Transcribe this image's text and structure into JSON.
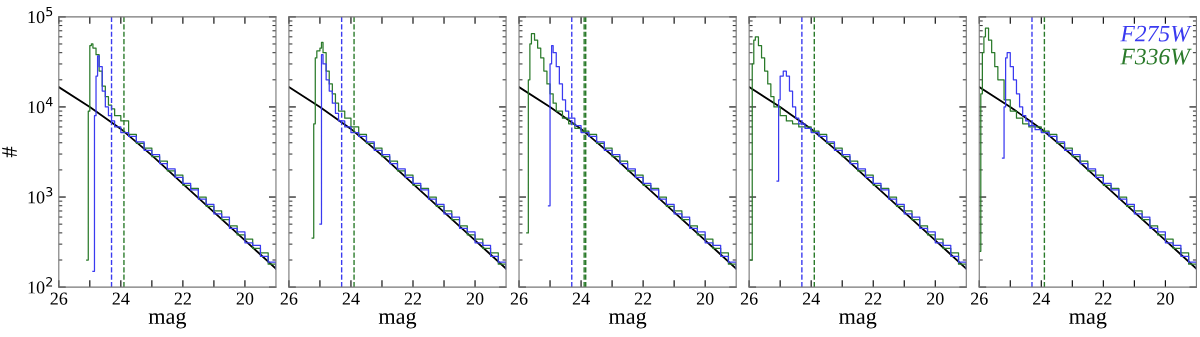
{
  "chart_data": [
    {
      "type": "line",
      "xlabel": "mag",
      "ylabel": "#",
      "log": "y",
      "xlim": [
        26,
        19
      ],
      "ylim": [
        100,
        100000
      ],
      "xticks": [
        26,
        {
          "value": 25,
          "label": null
        },
        24,
        {
          "value": 23,
          "label": null
        },
        22,
        {
          "value": 21,
          "label": null
        },
        20
      ],
      "yticks": [
        {
          "value": 100,
          "label": "10$^{2}$"
        },
        {
          "value": 1000,
          "label": "10$^{3}$"
        },
        {
          "value": 10000,
          "label": "10$^{4}$"
        },
        {
          "value": 100000,
          "label": "10$^{5}$"
        }
      ],
      "grid": false,
      "legend": false,
      "series": [
        {
          "type": "line",
          "color": "#000000",
          "x": [
            26,
            25,
            24,
            23,
            22,
            21,
            20,
            19.5,
            19
          ],
          "values": [
            16600,
            10000,
            5700,
            2900,
            1400,
            680,
            330,
            230,
            160
          ]
        },
        {
          "type": "step",
          "color": "#2a7a2a",
          "x": [
            25.1,
            25.05,
            25.0,
            24.95,
            24.9,
            24.8,
            24.7,
            24.6,
            24.5,
            24.4,
            24.3,
            24.2,
            24.0,
            23.75,
            23.5,
            23.25,
            23,
            22.75,
            22.5,
            22.25,
            22,
            21.75,
            21.5,
            21.25,
            21,
            20.75,
            20.5,
            20.25,
            20,
            19.75,
            19.5,
            19.25,
            19.0
          ],
          "values": [
            200,
            9000,
            48000,
            50000,
            45000,
            38000,
            25000,
            17000,
            13000,
            10500,
            9500,
            8000,
            7000,
            4950,
            3950,
            3500,
            2800,
            2500,
            1950,
            1750,
            1350,
            1250,
            1000,
            790,
            700,
            560,
            480,
            380,
            340,
            270,
            240,
            180,
            165
          ]
        },
        {
          "type": "step",
          "color": "#3a3af0",
          "x": [
            24.9,
            24.85,
            24.8,
            24.75,
            24.7,
            24.6,
            24.5,
            24.4,
            24.3,
            24.2,
            24.0,
            23.75,
            23.5,
            23.25,
            23,
            22.75,
            22.5,
            22.25,
            22,
            21.75,
            21.5,
            21.25,
            21,
            20.75,
            20.5,
            20.25,
            20,
            19.75,
            19.5,
            19.25,
            19.0
          ],
          "values": [
            150,
            8000,
            22000,
            37000,
            28000,
            15000,
            10000,
            8000,
            7000,
            6000,
            5200,
            4700,
            4100,
            3300,
            2950,
            2350,
            2050,
            1650,
            1420,
            1200,
            950,
            830,
            650,
            600,
            450,
            410,
            310,
            290,
            220,
            190,
            160
          ]
        }
      ],
      "ref_lines": [
        {
          "axis": "x",
          "value": 24.3,
          "color": "#3a3af0",
          "line_style": "dashed"
        },
        {
          "axis": "x",
          "value": 23.9,
          "color": "#2a7a2a",
          "line_style": "dashed"
        }
      ]
    },
    {
      "type": "line",
      "xlabel": "mag",
      "log": "y",
      "tick_labels": "x",
      "xlim": [
        26,
        19
      ],
      "ylim": [
        100,
        100000
      ],
      "xticks": [
        26,
        {
          "value": 25,
          "label": null
        },
        24,
        {
          "value": 23,
          "label": null
        },
        22,
        {
          "value": 21,
          "label": null
        },
        20
      ],
      "yticks": [
        {
          "value": 100,
          "label": null
        },
        {
          "value": 1000,
          "label": null
        },
        {
          "value": 10000,
          "label": null
        },
        {
          "value": 100000,
          "label": null
        }
      ],
      "grid": false,
      "legend": false,
      "series": [
        {
          "type": "line",
          "color": "#000000",
          "x": [
            26,
            25,
            24,
            23,
            22,
            21,
            20,
            19.5,
            19
          ],
          "values": [
            16600,
            10000,
            5700,
            2900,
            1400,
            680,
            330,
            230,
            160
          ]
        },
        {
          "type": "step",
          "color": "#2a7a2a",
          "x": [
            25.25,
            25.2,
            25.15,
            25.1,
            25.0,
            24.95,
            24.9,
            24.8,
            24.7,
            24.6,
            24.5,
            24.4,
            24.2,
            24.0,
            23.75,
            23.5,
            23.25,
            23,
            22.75,
            22.5,
            22.25,
            22,
            21.75,
            21.5,
            21.25,
            21,
            20.75,
            20.5,
            20.25,
            20,
            19.75,
            19.5,
            19.25,
            19.0
          ],
          "values": [
            350,
            6500,
            35000,
            42000,
            45000,
            52000,
            40000,
            25000,
            18000,
            14000,
            11000,
            9000,
            7500,
            6000,
            4950,
            3950,
            3500,
            2800,
            2500,
            1950,
            1750,
            1350,
            1250,
            1000,
            790,
            700,
            560,
            480,
            380,
            340,
            270,
            240,
            180,
            165
          ]
        },
        {
          "type": "step",
          "color": "#3a3af0",
          "x": [
            25.0,
            24.95,
            24.9,
            24.8,
            24.7,
            24.6,
            24.5,
            24.4,
            24.2,
            24.0,
            23.75,
            23.5,
            23.25,
            23,
            22.75,
            22.5,
            22.25,
            22,
            21.75,
            21.5,
            21.25,
            21,
            20.75,
            20.5,
            20.25,
            20,
            19.75,
            19.5,
            19.25,
            19.0
          ],
          "values": [
            500,
            38000,
            30000,
            20000,
            15000,
            11000,
            8500,
            7000,
            6000,
            5200,
            4700,
            4100,
            3300,
            2950,
            2350,
            2050,
            1650,
            1420,
            1200,
            950,
            830,
            650,
            600,
            450,
            410,
            310,
            290,
            220,
            190,
            160
          ]
        }
      ],
      "ref_lines": [
        {
          "axis": "x",
          "value": 24.3,
          "color": "#3a3af0",
          "line_style": "dashed"
        },
        {
          "axis": "x",
          "value": 23.9,
          "color": "#2a7a2a",
          "line_style": "dashed"
        }
      ]
    },
    {
      "type": "line",
      "xlabel": "mag",
      "log": "y",
      "tick_labels": "x",
      "xlim": [
        26,
        19
      ],
      "ylim": [
        100,
        100000
      ],
      "xticks": [
        26,
        {
          "value": 25,
          "label": null
        },
        24,
        {
          "value": 23,
          "label": null
        },
        22,
        {
          "value": 21,
          "label": null
        },
        20
      ],
      "yticks": [
        {
          "value": 100,
          "label": null
        },
        {
          "value": 1000,
          "label": null
        },
        {
          "value": 10000,
          "label": null
        },
        {
          "value": 100000,
          "label": null
        }
      ],
      "grid": false,
      "legend": false,
      "series": [
        {
          "type": "line",
          "color": "#000000",
          "x": [
            26,
            25,
            24,
            23,
            22,
            21,
            20,
            19.5,
            19
          ],
          "values": [
            16600,
            10000,
            5700,
            2900,
            1400,
            680,
            330,
            230,
            160
          ]
        },
        {
          "type": "step",
          "color": "#2a7a2a",
          "x": [
            25.75,
            25.7,
            25.65,
            25.6,
            25.5,
            25.4,
            25.3,
            25.2,
            25.1,
            25.0,
            24.9,
            24.8,
            24.6,
            24.4,
            24.2,
            24.0,
            23.75,
            23.5,
            23.25,
            23,
            22.75,
            22.5,
            22.25,
            22,
            21.75,
            21.5,
            21.25,
            21,
            20.75,
            20.5,
            20.25,
            20,
            19.75,
            19.5,
            19.25,
            19.0
          ],
          "values": [
            400,
            20000,
            50000,
            65000,
            55000,
            45000,
            35000,
            25000,
            18000,
            14000,
            11000,
            9000,
            7500,
            6500,
            5800,
            5400,
            4950,
            3950,
            3500,
            2800,
            2500,
            1950,
            1750,
            1350,
            1250,
            1000,
            790,
            700,
            560,
            480,
            380,
            340,
            270,
            240,
            180,
            165
          ]
        },
        {
          "type": "step",
          "color": "#3a3af0",
          "x": [
            25.05,
            25.0,
            24.95,
            24.9,
            24.8,
            24.7,
            24.6,
            24.5,
            24.4,
            24.2,
            24.0,
            23.75,
            23.5,
            23.25,
            23,
            22.75,
            22.5,
            22.25,
            22,
            21.75,
            21.5,
            21.25,
            21,
            20.75,
            20.5,
            20.25,
            20,
            19.75,
            19.5,
            19.25,
            19.0
          ],
          "values": [
            800,
            30000,
            48000,
            40000,
            28000,
            18000,
            12000,
            9000,
            7500,
            6200,
            5200,
            4700,
            4100,
            3300,
            2950,
            2350,
            2050,
            1650,
            1420,
            1200,
            950,
            830,
            650,
            600,
            450,
            410,
            310,
            290,
            220,
            190,
            160
          ]
        }
      ],
      "ref_lines": [
        {
          "axis": "x",
          "value": 24.3,
          "color": "#3a3af0",
          "line_style": "dashed"
        },
        {
          "axis": "x",
          "value": 23.9,
          "color": "#2a7a2a",
          "line_style": "dashed"
        },
        {
          "axis": "x",
          "value": 23.85,
          "color": "#2a7a2a",
          "line_style": "dashed"
        }
      ]
    },
    {
      "type": "line",
      "xlabel": "mag",
      "log": "y",
      "tick_labels": "x",
      "xlim": [
        26,
        19
      ],
      "ylim": [
        100,
        100000
      ],
      "xticks": [
        26,
        {
          "value": 25,
          "label": null
        },
        24,
        {
          "value": 23,
          "label": null
        },
        22,
        {
          "value": 21,
          "label": null
        },
        20
      ],
      "yticks": [
        {
          "value": 100,
          "label": null
        },
        {
          "value": 1000,
          "label": null
        },
        {
          "value": 10000,
          "label": null
        },
        {
          "value": 100000,
          "label": null
        }
      ],
      "grid": false,
      "legend": false,
      "series": [
        {
          "type": "line",
          "color": "#000000",
          "x": [
            26,
            25,
            24,
            23,
            22,
            21,
            20,
            19.5,
            19
          ],
          "values": [
            16600,
            10000,
            5700,
            2900,
            1400,
            680,
            330,
            230,
            160
          ]
        },
        {
          "type": "step",
          "color": "#2a7a2a",
          "x": [
            25.95,
            25.9,
            25.85,
            25.8,
            25.7,
            25.6,
            25.5,
            25.4,
            25.3,
            25.2,
            25.0,
            24.8,
            24.6,
            24.4,
            24.0,
            23.75,
            23.5,
            23.25,
            23,
            22.75,
            22.5,
            22.25,
            22,
            21.75,
            21.5,
            21.25,
            21,
            20.75,
            20.5,
            20.25,
            20,
            19.75,
            19.5,
            19.25,
            19.0
          ],
          "values": [
            200,
            30000,
            55000,
            60000,
            48000,
            35000,
            25000,
            18000,
            13000,
            10000,
            8000,
            7000,
            6500,
            6000,
            5400,
            4950,
            3950,
            3500,
            2800,
            2500,
            1950,
            1750,
            1350,
            1250,
            1000,
            790,
            700,
            560,
            480,
            380,
            340,
            270,
            240,
            180,
            165
          ]
        },
        {
          "type": "step",
          "color": "#3a3af0",
          "x": [
            25.1,
            25.05,
            25.0,
            24.9,
            24.8,
            24.7,
            24.6,
            24.5,
            24.4,
            24.2,
            24.0,
            23.75,
            23.5,
            23.25,
            23,
            22.75,
            22.5,
            22.25,
            22,
            21.75,
            21.5,
            21.25,
            21,
            20.75,
            20.5,
            20.25,
            20,
            19.75,
            19.5,
            19.25,
            19.0
          ],
          "values": [
            1500,
            12000,
            22000,
            25000,
            22000,
            15000,
            10000,
            7500,
            6500,
            5800,
            5200,
            4700,
            4100,
            3300,
            2950,
            2350,
            2050,
            1650,
            1420,
            1200,
            950,
            830,
            650,
            600,
            450,
            410,
            310,
            290,
            220,
            190,
            160
          ]
        }
      ],
      "ref_lines": [
        {
          "axis": "x",
          "value": 24.3,
          "color": "#3a3af0",
          "line_style": "dashed"
        },
        {
          "axis": "x",
          "value": 23.9,
          "color": "#2a7a2a",
          "line_style": "dashed"
        }
      ]
    },
    {
      "type": "line",
      "xlabel": "mag",
      "log": "y",
      "tick_labels": "x",
      "xlim": [
        26,
        19
      ],
      "ylim": [
        100,
        100000
      ],
      "xticks": [
        26,
        {
          "value": 25,
          "label": null
        },
        24,
        {
          "value": 23,
          "label": null
        },
        22,
        {
          "value": 21,
          "label": null
        },
        20
      ],
      "yticks": [
        {
          "value": 100,
          "label": null
        },
        {
          "value": 1000,
          "label": null
        },
        {
          "value": 10000,
          "label": null
        },
        {
          "value": 100000,
          "label": null
        }
      ],
      "grid": false,
      "legend": "top right",
      "series": [
        {
          "type": "line",
          "color": "#000000",
          "x": [
            26,
            25,
            24,
            23,
            22,
            21,
            20,
            19.5,
            19
          ],
          "values": [
            16600,
            10000,
            5700,
            2900,
            1400,
            680,
            330,
            230,
            160
          ]
        },
        {
          "name": "F336W",
          "type": "step",
          "color": "#2a7a2a",
          "x": [
            26.0,
            25.95,
            25.9,
            25.85,
            25.8,
            25.7,
            25.6,
            25.5,
            25.4,
            25.2,
            25.0,
            24.8,
            24.6,
            24.4,
            24.0,
            23.75,
            23.5,
            23.25,
            23,
            22.75,
            22.5,
            22.25,
            22,
            21.75,
            21.5,
            21.25,
            21,
            20.75,
            20.5,
            20.25,
            20,
            19.75,
            19.5,
            19.25,
            19.0
          ],
          "values": [
            250,
            14000,
            40000,
            60000,
            75000,
            55000,
            40000,
            28000,
            20000,
            12000,
            9000,
            7500,
            6500,
            6000,
            5400,
            4950,
            3950,
            3500,
            2800,
            2500,
            1950,
            1750,
            1350,
            1250,
            1000,
            790,
            700,
            560,
            480,
            380,
            340,
            270,
            240,
            180,
            165
          ]
        },
        {
          "name": "F275W",
          "type": "step",
          "color": "#3a3af0",
          "x": [
            25.25,
            25.2,
            25.15,
            25.1,
            25.0,
            24.9,
            24.8,
            24.7,
            24.6,
            24.5,
            24.4,
            24.2,
            24.0,
            23.75,
            23.5,
            23.25,
            23,
            22.75,
            22.5,
            22.25,
            22,
            21.75,
            21.5,
            21.25,
            21,
            20.75,
            20.5,
            20.25,
            20,
            19.75,
            19.5,
            19.25,
            19.0
          ],
          "values": [
            2700,
            10000,
            35000,
            40000,
            28000,
            20000,
            14000,
            10000,
            8000,
            7000,
            6200,
            5600,
            5200,
            4700,
            4100,
            3300,
            2950,
            2350,
            2050,
            1650,
            1420,
            1200,
            950,
            830,
            650,
            600,
            450,
            410,
            310,
            290,
            220,
            190,
            160
          ]
        }
      ],
      "ref_lines": [
        {
          "axis": "x",
          "value": 24.3,
          "color": "#3a3af0",
          "line_style": "dashed"
        },
        {
          "axis": "x",
          "value": 23.9,
          "color": "#2a7a2a",
          "line_style": "dashed"
        }
      ]
    }
  ]
}
